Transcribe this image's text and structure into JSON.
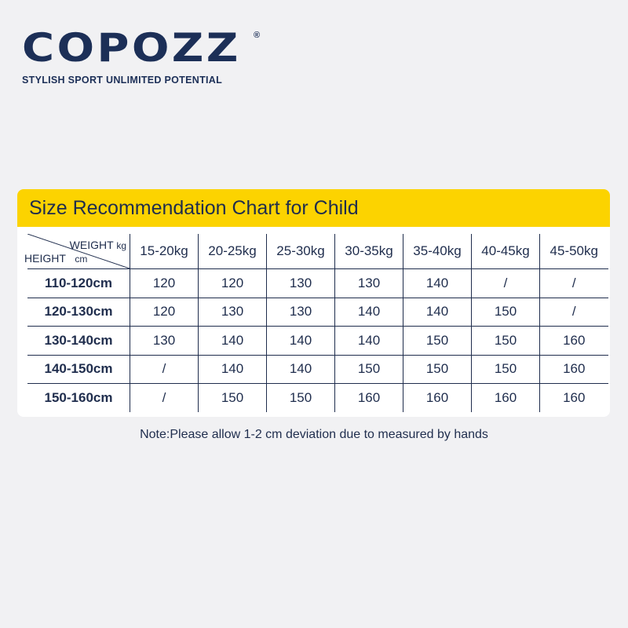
{
  "brand": {
    "logo": "COPOZZ",
    "registered": "®",
    "tagline": "STYLISH SPORT  UNLIMITED POTENTIAL"
  },
  "chart": {
    "title": "Size Recommendation Chart for Child",
    "corner": {
      "weight_label": "WEIGHT",
      "weight_unit": "kg",
      "height_label": "HEIGHT",
      "height_unit": "cm"
    },
    "columns": [
      "15-20kg",
      "20-25kg",
      "25-30kg",
      "30-35kg",
      "35-40kg",
      "40-45kg",
      "45-50kg"
    ],
    "rows": [
      {
        "height": "110-120cm",
        "sizes": [
          "120",
          "120",
          "130",
          "130",
          "140",
          "/",
          "/"
        ]
      },
      {
        "height": "120-130cm",
        "sizes": [
          "120",
          "130",
          "130",
          "140",
          "140",
          "150",
          "/"
        ]
      },
      {
        "height": "130-140cm",
        "sizes": [
          "130",
          "140",
          "140",
          "140",
          "150",
          "150",
          "160"
        ]
      },
      {
        "height": "140-150cm",
        "sizes": [
          "/",
          "140",
          "140",
          "150",
          "150",
          "150",
          "160"
        ]
      },
      {
        "height": "150-160cm",
        "sizes": [
          "/",
          "150",
          "150",
          "160",
          "160",
          "160",
          "160"
        ]
      }
    ]
  },
  "note": "Note:Please allow 1-2 cm deviation due to measured by hands",
  "colors": {
    "accent": "#fcd300",
    "navy": "#1c2f57",
    "background": "#f1f1f3"
  }
}
